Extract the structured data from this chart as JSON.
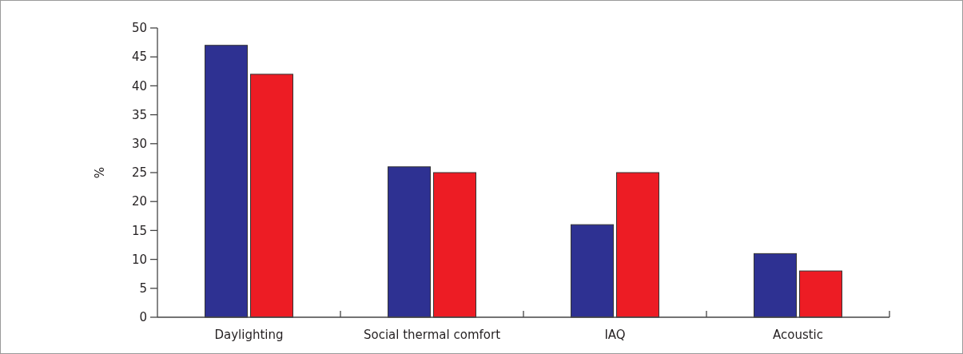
{
  "chart_data": {
    "type": "bar",
    "ylabel": "%",
    "categories": [
      "Daylighting",
      "Social thermal comfort",
      "IAQ",
      "Acoustic"
    ],
    "series": [
      {
        "color": "#2e3192",
        "values": [
          47,
          26,
          16,
          11
        ]
      },
      {
        "color": "#ed1c24",
        "values": [
          42,
          25,
          25,
          8
        ]
      }
    ],
    "ylim": [
      0,
      50
    ],
    "yticks": [
      0,
      5,
      10,
      15,
      20,
      25,
      30,
      35,
      40,
      45,
      50
    ],
    "grid": false,
    "legend": false
  }
}
